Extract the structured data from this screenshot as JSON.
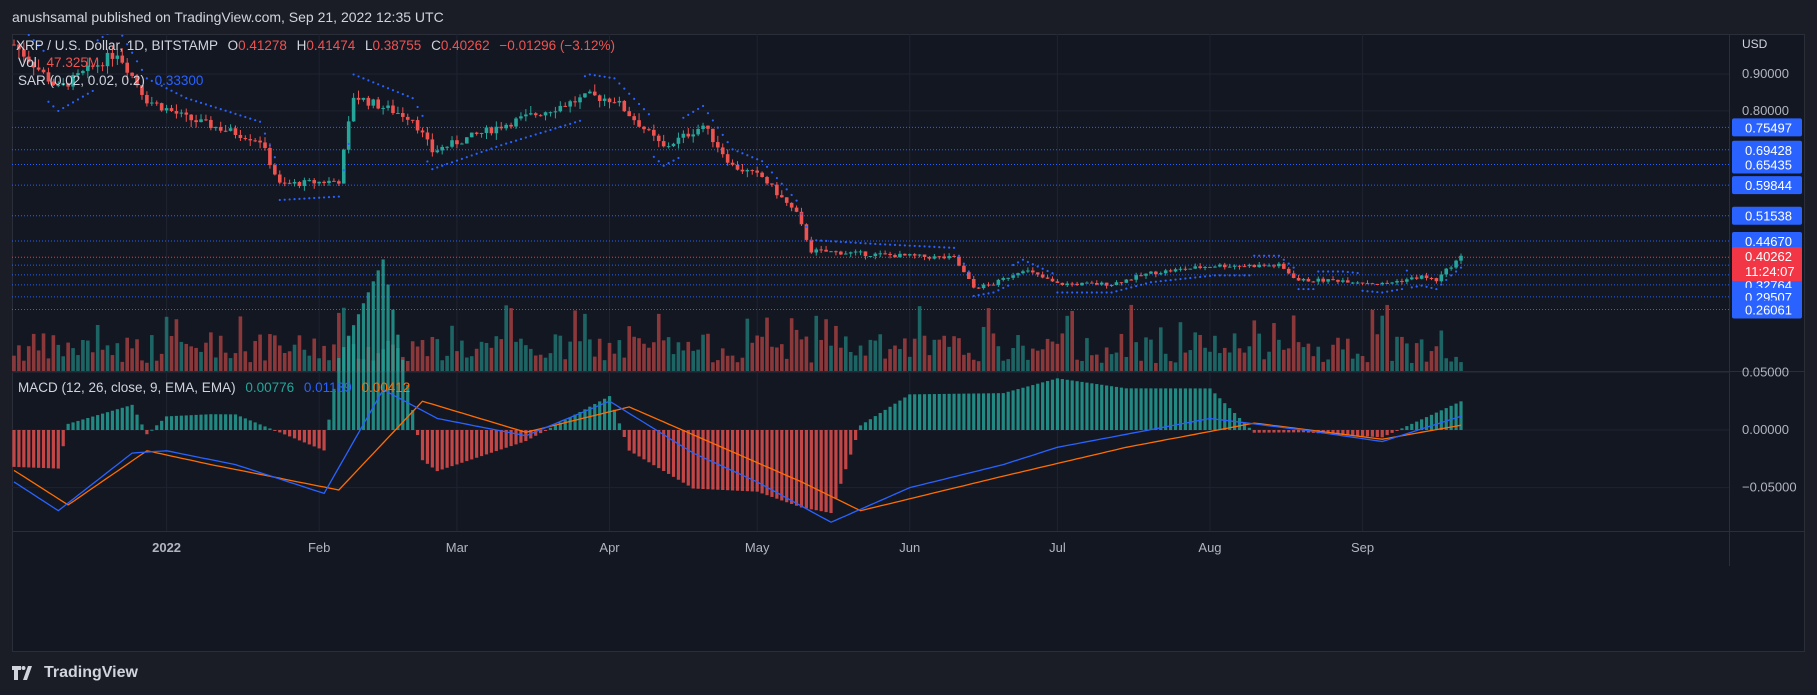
{
  "header": {
    "published_by": "anushsamal published on TradingView.com, Sep 21, 2022 12:35 UTC"
  },
  "footer": {
    "brand": "TradingView"
  },
  "colors": {
    "up": "#26a69a",
    "down": "#ef5350",
    "bg": "#131722",
    "sar": "#2962ff",
    "macd": "#2962ff",
    "signal": "#ff6d00",
    "level": "#2962ff",
    "price_badge": "#f23645"
  },
  "legend": {
    "symbol": "XRP / U.S. Dollar, 1D, BITSTAMP",
    "o_label": "O",
    "o_value": "0.41278",
    "h_label": "H",
    "h_value": "0.41474",
    "l_label": "L",
    "l_value": "0.38755",
    "c_label": "C",
    "c_value": "0.40262",
    "change": "−0.01296 (−3.12%)",
    "vol_label": "Vol",
    "vol_value": "47.325M",
    "sar_label": "SAR (0.02, 0.02, 0.2)",
    "sar_value": "0.33300",
    "macd_label": "MACD (12, 26, close, 9, EMA, EMA)",
    "macd_hist": "0.00776",
    "macd_line": "0.01189",
    "macd_signal": "0.00412"
  },
  "chart_data": [
    {
      "type": "candlestick",
      "title": "XRP / U.S. Dollar, 1D, BITSTAMP",
      "currency": "USD",
      "x_labels": [
        "2022",
        "Feb",
        "Mar",
        "Apr",
        "May",
        "Jun",
        "Jul",
        "Aug",
        "Sep"
      ],
      "y_ticks": [
        "0.90000",
        "0.80000"
      ],
      "ylim": [
        0.26,
        0.96
      ],
      "close_series_key_points": [
        {
          "date": "2021-12-01",
          "close": 0.98
        },
        {
          "date": "2021-12-10",
          "close": 0.86
        },
        {
          "date": "2021-12-22",
          "close": 0.96
        },
        {
          "date": "2021-12-28",
          "close": 0.83
        },
        {
          "date": "2022-01-05",
          "close": 0.78
        },
        {
          "date": "2022-01-20",
          "close": 0.72
        },
        {
          "date": "2022-01-24",
          "close": 0.6
        },
        {
          "date": "2022-02-05",
          "close": 0.61
        },
        {
          "date": "2022-02-08",
          "close": 0.84
        },
        {
          "date": "2022-02-20",
          "close": 0.78
        },
        {
          "date": "2022-02-24",
          "close": 0.69
        },
        {
          "date": "2022-03-10",
          "close": 0.76
        },
        {
          "date": "2022-03-28",
          "close": 0.84
        },
        {
          "date": "2022-04-02",
          "close": 0.83
        },
        {
          "date": "2022-04-12",
          "close": 0.7
        },
        {
          "date": "2022-04-20",
          "close": 0.76
        },
        {
          "date": "2022-04-26",
          "close": 0.65
        },
        {
          "date": "2022-05-02",
          "close": 0.62
        },
        {
          "date": "2022-05-09",
          "close": 0.52
        },
        {
          "date": "2022-05-12",
          "close": 0.42
        },
        {
          "date": "2022-05-25",
          "close": 0.41
        },
        {
          "date": "2022-06-10",
          "close": 0.4
        },
        {
          "date": "2022-06-14",
          "close": 0.32
        },
        {
          "date": "2022-06-18",
          "close": 0.33
        },
        {
          "date": "2022-06-24",
          "close": 0.37
        },
        {
          "date": "2022-07-01",
          "close": 0.33
        },
        {
          "date": "2022-07-12",
          "close": 0.33
        },
        {
          "date": "2022-07-20",
          "close": 0.36
        },
        {
          "date": "2022-08-02",
          "close": 0.38
        },
        {
          "date": "2022-08-15",
          "close": 0.38
        },
        {
          "date": "2022-08-19",
          "close": 0.34
        },
        {
          "date": "2022-08-28",
          "close": 0.34
        },
        {
          "date": "2022-09-05",
          "close": 0.33
        },
        {
          "date": "2022-09-13",
          "close": 0.35
        },
        {
          "date": "2022-09-16",
          "close": 0.34
        },
        {
          "date": "2022-09-19",
          "close": 0.38
        },
        {
          "date": "2022-09-21",
          "close": 0.40262
        }
      ],
      "horizontal_levels": [
        "0.75497",
        "0.69428",
        "0.65435",
        "0.59844",
        "0.51538",
        "0.44670",
        "0.38121",
        "0.35478",
        "0.32764",
        "0.29507",
        "0.26061"
      ],
      "last_price": "0.40262",
      "countdown": "11:24:07",
      "parabolic_sar": "0.33300",
      "volume_last": "47.325M"
    },
    {
      "type": "line",
      "title": "MACD (12, 26, close, 9, EMA, EMA)",
      "y_ticks": [
        "0.05000",
        "0.00000",
        "−0.05000"
      ],
      "ylim": [
        -0.09,
        0.07
      ],
      "series": [
        {
          "name": "MACD",
          "values_key_points": [
            {
              "date": "2021-12-01",
              "value": -0.045
            },
            {
              "date": "2021-12-10",
              "value": -0.07
            },
            {
              "date": "2021-12-25",
              "value": -0.02
            },
            {
              "date": "2022-01-01",
              "value": -0.018
            },
            {
              "date": "2022-01-15",
              "value": -0.03
            },
            {
              "date": "2022-02-02",
              "value": -0.055
            },
            {
              "date": "2022-02-14",
              "value": 0.035
            },
            {
              "date": "2022-02-25",
              "value": 0.01
            },
            {
              "date": "2022-03-15",
              "value": -0.005
            },
            {
              "date": "2022-04-01",
              "value": 0.025
            },
            {
              "date": "2022-04-18",
              "value": -0.02
            },
            {
              "date": "2022-05-01",
              "value": -0.045
            },
            {
              "date": "2022-05-16",
              "value": -0.08
            },
            {
              "date": "2022-06-01",
              "value": -0.05
            },
            {
              "date": "2022-06-20",
              "value": -0.03
            },
            {
              "date": "2022-07-01",
              "value": -0.015
            },
            {
              "date": "2022-08-01",
              "value": 0.01
            },
            {
              "date": "2022-08-20",
              "value": 0.0
            },
            {
              "date": "2022-09-05",
              "value": -0.01
            },
            {
              "date": "2022-09-21",
              "value": 0.01189
            }
          ]
        },
        {
          "name": "Signal",
          "values_key_points": [
            {
              "date": "2021-12-01",
              "value": -0.035
            },
            {
              "date": "2021-12-12",
              "value": -0.065
            },
            {
              "date": "2021-12-28",
              "value": -0.018
            },
            {
              "date": "2022-01-10",
              "value": -0.03
            },
            {
              "date": "2022-02-05",
              "value": -0.052
            },
            {
              "date": "2022-02-22",
              "value": 0.025
            },
            {
              "date": "2022-03-15",
              "value": -0.002
            },
            {
              "date": "2022-04-05",
              "value": 0.02
            },
            {
              "date": "2022-05-10",
              "value": -0.045
            },
            {
              "date": "2022-05-22",
              "value": -0.07
            },
            {
              "date": "2022-06-20",
              "value": -0.04
            },
            {
              "date": "2022-07-15",
              "value": -0.015
            },
            {
              "date": "2022-08-10",
              "value": 0.006
            },
            {
              "date": "2022-09-05",
              "value": -0.008
            },
            {
              "date": "2022-09-21",
              "value": 0.00412
            }
          ]
        }
      ]
    }
  ]
}
